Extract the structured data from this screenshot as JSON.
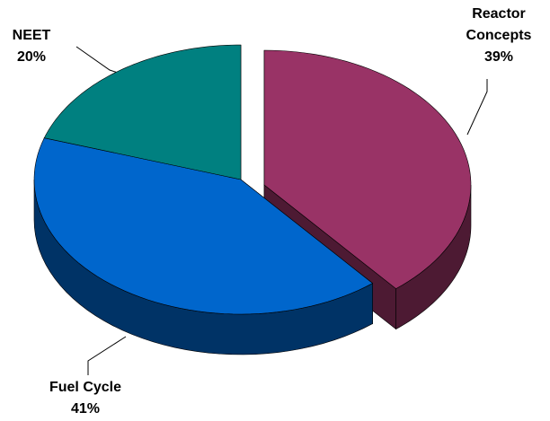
{
  "chart_data": {
    "type": "pie",
    "categories": [
      "Reactor Concepts",
      "Fuel Cycle",
      "NEET"
    ],
    "values": [
      39,
      41,
      20
    ],
    "value_labels": [
      "39%",
      "41%",
      "20%"
    ],
    "colors": [
      "#993366",
      "#0066cc",
      "#008080"
    ],
    "side_colors": [
      "#4d1a33",
      "#003366",
      "#004040"
    ]
  }
}
